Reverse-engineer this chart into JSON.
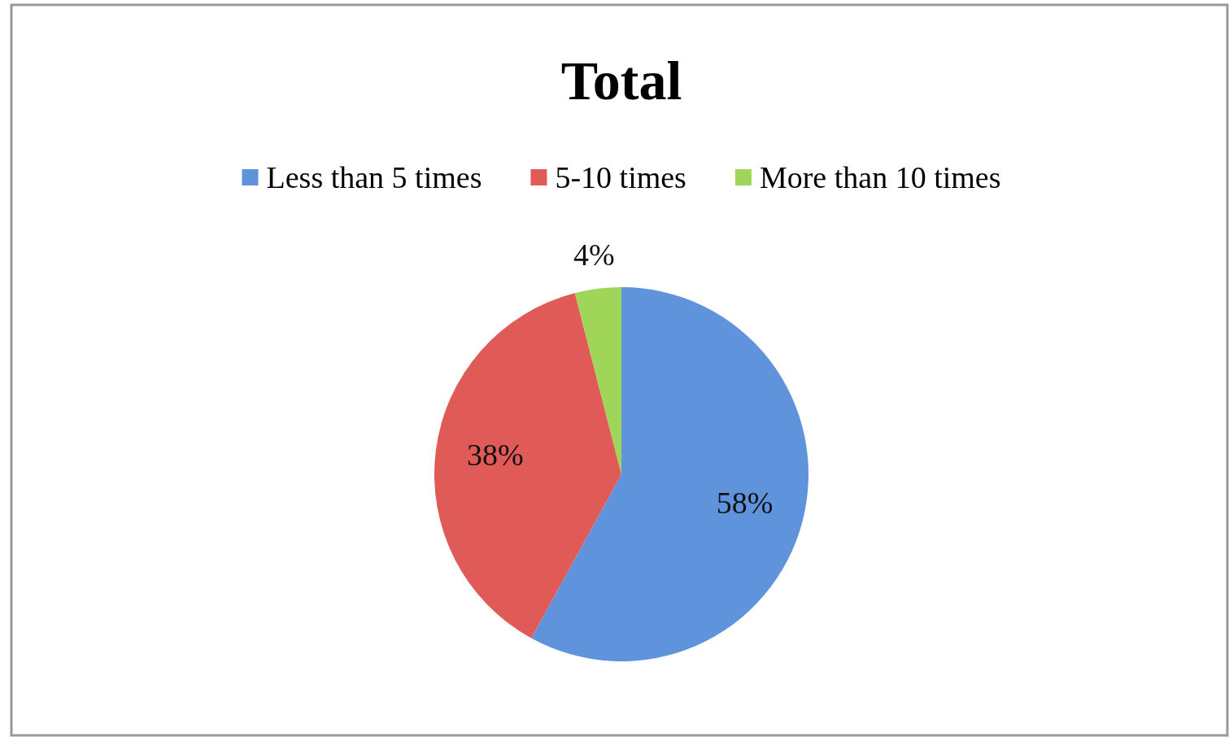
{
  "chart_data": {
    "type": "pie",
    "title": "Total",
    "categories": [
      "Less than 5 times",
      "5-10 times",
      "More than 10 times"
    ],
    "values": [
      58,
      38,
      4
    ],
    "colors": [
      "#5f93dc",
      "#e05a57",
      "#9fd65a"
    ],
    "value_labels": [
      "58%",
      "38%",
      "4%"
    ],
    "legend": "top"
  }
}
